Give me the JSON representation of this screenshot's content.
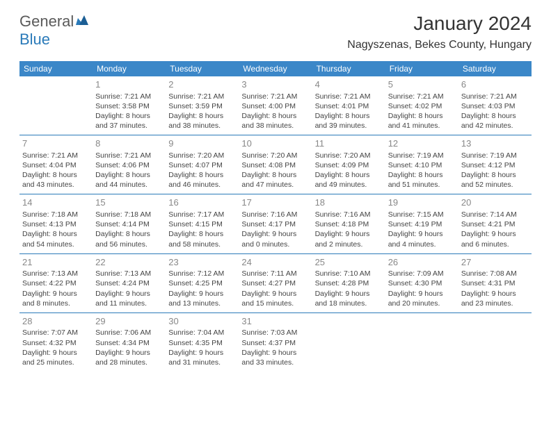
{
  "brand": {
    "line1": "General",
    "line2": "Blue"
  },
  "title": "January 2024",
  "location": "Nagyszenas, Bekes County, Hungary",
  "colors": {
    "header_bg": "#3b87c8",
    "header_fg": "#ffffff",
    "border": "#2a7ab9",
    "daynum": "#888888",
    "text": "#444444"
  },
  "days_of_week": [
    "Sunday",
    "Monday",
    "Tuesday",
    "Wednesday",
    "Thursday",
    "Friday",
    "Saturday"
  ],
  "weeks": [
    [
      null,
      {
        "n": "1",
        "sunrise": "7:21 AM",
        "sunset": "3:58 PM",
        "dl1": "Daylight: 8 hours",
        "dl2": "and 37 minutes."
      },
      {
        "n": "2",
        "sunrise": "7:21 AM",
        "sunset": "3:59 PM",
        "dl1": "Daylight: 8 hours",
        "dl2": "and 38 minutes."
      },
      {
        "n": "3",
        "sunrise": "7:21 AM",
        "sunset": "4:00 PM",
        "dl1": "Daylight: 8 hours",
        "dl2": "and 38 minutes."
      },
      {
        "n": "4",
        "sunrise": "7:21 AM",
        "sunset": "4:01 PM",
        "dl1": "Daylight: 8 hours",
        "dl2": "and 39 minutes."
      },
      {
        "n": "5",
        "sunrise": "7:21 AM",
        "sunset": "4:02 PM",
        "dl1": "Daylight: 8 hours",
        "dl2": "and 41 minutes."
      },
      {
        "n": "6",
        "sunrise": "7:21 AM",
        "sunset": "4:03 PM",
        "dl1": "Daylight: 8 hours",
        "dl2": "and 42 minutes."
      }
    ],
    [
      {
        "n": "7",
        "sunrise": "7:21 AM",
        "sunset": "4:04 PM",
        "dl1": "Daylight: 8 hours",
        "dl2": "and 43 minutes."
      },
      {
        "n": "8",
        "sunrise": "7:21 AM",
        "sunset": "4:06 PM",
        "dl1": "Daylight: 8 hours",
        "dl2": "and 44 minutes."
      },
      {
        "n": "9",
        "sunrise": "7:20 AM",
        "sunset": "4:07 PM",
        "dl1": "Daylight: 8 hours",
        "dl2": "and 46 minutes."
      },
      {
        "n": "10",
        "sunrise": "7:20 AM",
        "sunset": "4:08 PM",
        "dl1": "Daylight: 8 hours",
        "dl2": "and 47 minutes."
      },
      {
        "n": "11",
        "sunrise": "7:20 AM",
        "sunset": "4:09 PM",
        "dl1": "Daylight: 8 hours",
        "dl2": "and 49 minutes."
      },
      {
        "n": "12",
        "sunrise": "7:19 AM",
        "sunset": "4:10 PM",
        "dl1": "Daylight: 8 hours",
        "dl2": "and 51 minutes."
      },
      {
        "n": "13",
        "sunrise": "7:19 AM",
        "sunset": "4:12 PM",
        "dl1": "Daylight: 8 hours",
        "dl2": "and 52 minutes."
      }
    ],
    [
      {
        "n": "14",
        "sunrise": "7:18 AM",
        "sunset": "4:13 PM",
        "dl1": "Daylight: 8 hours",
        "dl2": "and 54 minutes."
      },
      {
        "n": "15",
        "sunrise": "7:18 AM",
        "sunset": "4:14 PM",
        "dl1": "Daylight: 8 hours",
        "dl2": "and 56 minutes."
      },
      {
        "n": "16",
        "sunrise": "7:17 AM",
        "sunset": "4:15 PM",
        "dl1": "Daylight: 8 hours",
        "dl2": "and 58 minutes."
      },
      {
        "n": "17",
        "sunrise": "7:16 AM",
        "sunset": "4:17 PM",
        "dl1": "Daylight: 9 hours",
        "dl2": "and 0 minutes."
      },
      {
        "n": "18",
        "sunrise": "7:16 AM",
        "sunset": "4:18 PM",
        "dl1": "Daylight: 9 hours",
        "dl2": "and 2 minutes."
      },
      {
        "n": "19",
        "sunrise": "7:15 AM",
        "sunset": "4:19 PM",
        "dl1": "Daylight: 9 hours",
        "dl2": "and 4 minutes."
      },
      {
        "n": "20",
        "sunrise": "7:14 AM",
        "sunset": "4:21 PM",
        "dl1": "Daylight: 9 hours",
        "dl2": "and 6 minutes."
      }
    ],
    [
      {
        "n": "21",
        "sunrise": "7:13 AM",
        "sunset": "4:22 PM",
        "dl1": "Daylight: 9 hours",
        "dl2": "and 8 minutes."
      },
      {
        "n": "22",
        "sunrise": "7:13 AM",
        "sunset": "4:24 PM",
        "dl1": "Daylight: 9 hours",
        "dl2": "and 11 minutes."
      },
      {
        "n": "23",
        "sunrise": "7:12 AM",
        "sunset": "4:25 PM",
        "dl1": "Daylight: 9 hours",
        "dl2": "and 13 minutes."
      },
      {
        "n": "24",
        "sunrise": "7:11 AM",
        "sunset": "4:27 PM",
        "dl1": "Daylight: 9 hours",
        "dl2": "and 15 minutes."
      },
      {
        "n": "25",
        "sunrise": "7:10 AM",
        "sunset": "4:28 PM",
        "dl1": "Daylight: 9 hours",
        "dl2": "and 18 minutes."
      },
      {
        "n": "26",
        "sunrise": "7:09 AM",
        "sunset": "4:30 PM",
        "dl1": "Daylight: 9 hours",
        "dl2": "and 20 minutes."
      },
      {
        "n": "27",
        "sunrise": "7:08 AM",
        "sunset": "4:31 PM",
        "dl1": "Daylight: 9 hours",
        "dl2": "and 23 minutes."
      }
    ],
    [
      {
        "n": "28",
        "sunrise": "7:07 AM",
        "sunset": "4:32 PM",
        "dl1": "Daylight: 9 hours",
        "dl2": "and 25 minutes."
      },
      {
        "n": "29",
        "sunrise": "7:06 AM",
        "sunset": "4:34 PM",
        "dl1": "Daylight: 9 hours",
        "dl2": "and 28 minutes."
      },
      {
        "n": "30",
        "sunrise": "7:04 AM",
        "sunset": "4:35 PM",
        "dl1": "Daylight: 9 hours",
        "dl2": "and 31 minutes."
      },
      {
        "n": "31",
        "sunrise": "7:03 AM",
        "sunset": "4:37 PM",
        "dl1": "Daylight: 9 hours",
        "dl2": "and 33 minutes."
      },
      null,
      null,
      null
    ]
  ],
  "labels": {
    "sunrise_prefix": "Sunrise: ",
    "sunset_prefix": "Sunset: "
  }
}
